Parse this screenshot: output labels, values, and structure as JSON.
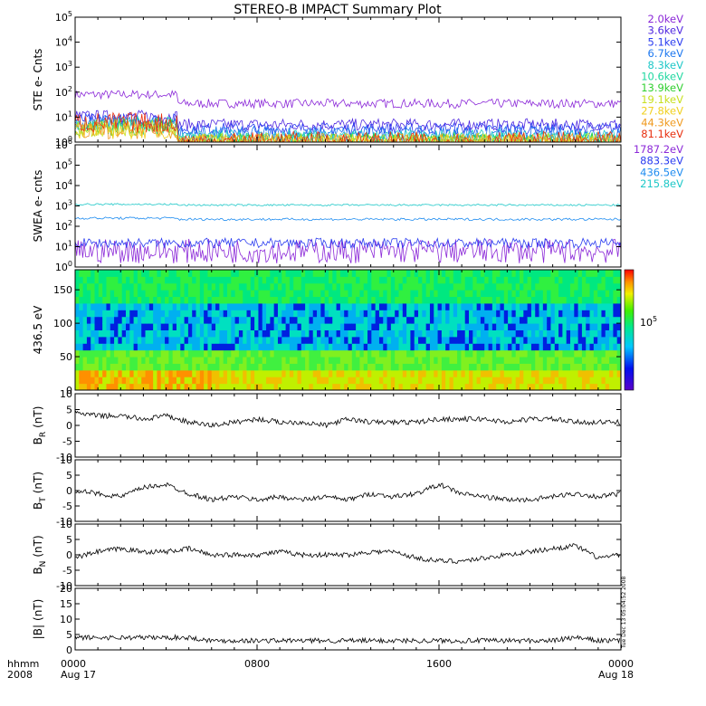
{
  "title": "STEREO-B IMPACT Summary Plot",
  "footer": {
    "time_label": "hhmm",
    "year": "2008",
    "ticks": [
      "0000",
      "0800",
      "1600",
      "0000"
    ],
    "dates": [
      "Aug 17",
      "",
      "",
      "Aug 18"
    ]
  },
  "side_stamp": "Tue Dec 13 05:04:52 2008",
  "colorbar": {
    "label": "10",
    "exponent": "5"
  },
  "chart_data": [
    {
      "type": "line",
      "title": "",
      "ylabel": "STE e- Cnts",
      "yscale": "log",
      "ylim": [
        1,
        100000
      ],
      "yticks": [
        {
          "base": "10",
          "exp": "0"
        },
        {
          "base": "10",
          "exp": "1"
        },
        {
          "base": "10",
          "exp": "2"
        },
        {
          "base": "10",
          "exp": "3"
        },
        {
          "base": "10",
          "exp": "4"
        },
        {
          "base": "10",
          "exp": "5"
        }
      ],
      "xlim_hours": [
        0,
        24
      ],
      "series": [
        {
          "name": "2.0keV",
          "color": "#8b28d8",
          "level": 80,
          "late_level": 35,
          "noise": 0.06
        },
        {
          "name": "3.6keV",
          "color": "#5028e0",
          "level": 11,
          "late_level": 5,
          "noise": 0.08
        },
        {
          "name": "5.1keV",
          "color": "#2a3cf0",
          "level": 8,
          "late_level": 3.5,
          "noise": 0.08
        },
        {
          "name": "6.7keV",
          "color": "#1e78f0",
          "level": 6,
          "late_level": 2.2,
          "noise": 0.1
        },
        {
          "name": "8.3keV",
          "color": "#1ec8c8",
          "level": 5,
          "late_level": 1.6,
          "noise": 0.1
        },
        {
          "name": "10.6keV",
          "color": "#20d8a0",
          "level": 4.5,
          "late_level": 1.1,
          "noise": 0.12
        },
        {
          "name": "13.9keV",
          "color": "#30d030",
          "level": 4,
          "late_level": 1,
          "noise": 0.12
        },
        {
          "name": "19.1keV",
          "color": "#c8e020",
          "level": 3.5,
          "late_level": 1,
          "noise": 0.12
        },
        {
          "name": "27.8keV",
          "color": "#f0d020",
          "level": 3,
          "late_level": 1,
          "noise": 0.12
        },
        {
          "name": "44.3keV",
          "color": "#f09a20",
          "level": 3,
          "late_level": 1,
          "noise": 0.12
        },
        {
          "name": "81.1keV",
          "color": "#e83010",
          "level": 6,
          "late_level": 1,
          "noise": 0.14
        }
      ]
    },
    {
      "type": "line",
      "title": "",
      "ylabel": "SWEA e- cnts",
      "yscale": "log",
      "ylim": [
        1,
        1000000
      ],
      "yticks": [
        {
          "base": "10",
          "exp": "0"
        },
        {
          "base": "10",
          "exp": "1"
        },
        {
          "base": "10",
          "exp": "2"
        },
        {
          "base": "10",
          "exp": "3"
        },
        {
          "base": "10",
          "exp": "4"
        },
        {
          "base": "10",
          "exp": "5"
        },
        {
          "base": "10",
          "exp": "6"
        }
      ],
      "xlim_hours": [
        0,
        24
      ],
      "series": [
        {
          "name": "1787.2eV",
          "color": "#8b28d8",
          "level": 6,
          "late_level": 6,
          "noise": 0.2
        },
        {
          "name": "883.3eV",
          "color": "#2a3cf0",
          "level": 15,
          "late_level": 15,
          "noise": 0.08
        },
        {
          "name": "436.5eV",
          "color": "#1e8cf0",
          "level": 250,
          "late_level": 220,
          "noise": 0.02
        },
        {
          "name": "215.8eV",
          "color": "#1ec8c8",
          "level": 1200,
          "late_level": 1100,
          "noise": 0.015
        }
      ]
    },
    {
      "type": "heatmap",
      "title": "",
      "ylabel": "436.5 eV",
      "ylim": [
        0,
        180
      ],
      "yticks": [
        "0",
        "50",
        "100",
        "150"
      ],
      "xlim_hours": [
        0,
        24
      ],
      "colorbar_tick": "10^5"
    },
    {
      "type": "line",
      "title": "",
      "ylabel_main": "B",
      "ylabel_sub": "R",
      "ylabel_unit": "(nT)",
      "ylim": [
        -10,
        10
      ],
      "yticks": [
        "10",
        "5",
        "0",
        "-5",
        "-10"
      ],
      "xlim_hours": [
        0,
        24
      ],
      "x_hours": [
        0,
        1,
        2,
        3,
        4,
        5,
        6,
        7,
        8,
        9,
        10,
        11,
        12,
        13,
        14,
        15,
        16,
        17,
        18,
        19,
        20,
        21,
        22,
        23,
        24
      ],
      "values": [
        4,
        3,
        3,
        2,
        3,
        1,
        0,
        1,
        2,
        1,
        1,
        0,
        2,
        1,
        1,
        1,
        2,
        2,
        2,
        1,
        2,
        2,
        1,
        1,
        1
      ]
    },
    {
      "type": "line",
      "title": "",
      "ylabel_main": "B",
      "ylabel_sub": "T",
      "ylabel_unit": "(nT)",
      "ylim": [
        -10,
        10
      ],
      "yticks": [
        "10",
        "5",
        "0",
        "-5",
        "-10"
      ],
      "xlim_hours": [
        0,
        24
      ],
      "x_hours": [
        0,
        1,
        2,
        3,
        4,
        5,
        6,
        7,
        8,
        9,
        10,
        11,
        12,
        13,
        14,
        15,
        16,
        17,
        18,
        19,
        20,
        21,
        22,
        23,
        24
      ],
      "values": [
        0,
        -1,
        -2,
        1,
        2,
        -1,
        -3,
        -2,
        -3,
        -2,
        -3,
        -2,
        -3,
        -1,
        -2,
        -1,
        2,
        -1,
        -2,
        -3,
        -3,
        -2,
        -1,
        -2,
        -1
      ]
    },
    {
      "type": "line",
      "title": "",
      "ylabel_main": "B",
      "ylabel_sub": "N",
      "ylabel_unit": "(nT)",
      "ylim": [
        -10,
        10
      ],
      "yticks": [
        "10",
        "5",
        "0",
        "-5",
        "-10"
      ],
      "xlim_hours": [
        0,
        24
      ],
      "x_hours": [
        0,
        1,
        2,
        3,
        4,
        5,
        6,
        7,
        8,
        9,
        10,
        11,
        12,
        13,
        14,
        15,
        16,
        17,
        18,
        19,
        20,
        21,
        22,
        23,
        24
      ],
      "values": [
        -1,
        1,
        2,
        1,
        1,
        2,
        0,
        0,
        0,
        1,
        0,
        0,
        0,
        1,
        1,
        -1,
        -2,
        -2,
        -1,
        0,
        1,
        2,
        3,
        -1,
        0
      ]
    },
    {
      "type": "line",
      "title": "",
      "ylabel_main": "|B|",
      "ylabel_sub": "",
      "ylabel_unit": "(nT)",
      "ylim": [
        0,
        20
      ],
      "yticks": [
        "20",
        "15",
        "10",
        "5",
        "0"
      ],
      "xlim_hours": [
        0,
        24
      ],
      "x_hours": [
        0,
        1,
        2,
        3,
        4,
        5,
        6,
        7,
        8,
        9,
        10,
        11,
        12,
        13,
        14,
        15,
        16,
        17,
        18,
        19,
        20,
        21,
        22,
        23,
        24
      ],
      "values": [
        4,
        4,
        4,
        4,
        4,
        4,
        3,
        3,
        3,
        3,
        3,
        3,
        3,
        3,
        3,
        3,
        3,
        3,
        3,
        3,
        3,
        3,
        4,
        3,
        3
      ]
    }
  ]
}
